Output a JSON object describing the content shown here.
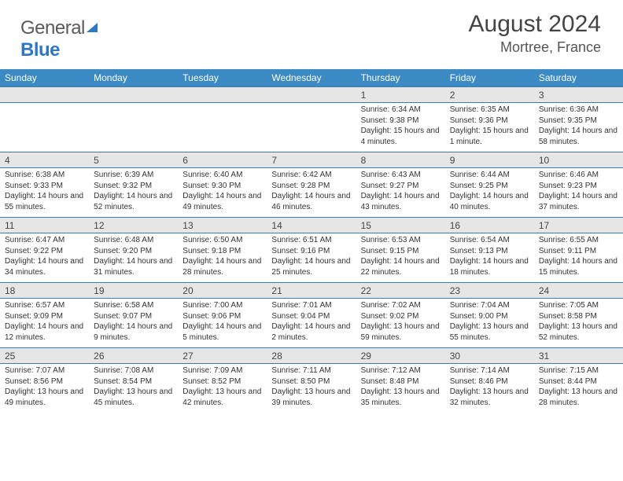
{
  "brand": {
    "name_part1": "General",
    "name_part2": "Blue"
  },
  "title": "August 2024",
  "location": "Mortree, France",
  "colors": {
    "header_bg": "#3b8ac4",
    "row_sep": "#3b7db0",
    "daynum_bg": "#e6e6e6",
    "logo_accent": "#2d78c4"
  },
  "column_headers": [
    "Sunday",
    "Monday",
    "Tuesday",
    "Wednesday",
    "Thursday",
    "Friday",
    "Saturday"
  ],
  "weeks": [
    {
      "nums": [
        "",
        "",
        "",
        "",
        "1",
        "2",
        "3"
      ],
      "infos": [
        null,
        null,
        null,
        null,
        {
          "sunrise": "Sunrise: 6:34 AM",
          "sunset": "Sunset: 9:38 PM",
          "daylight": "Daylight: 15 hours and 4 minutes."
        },
        {
          "sunrise": "Sunrise: 6:35 AM",
          "sunset": "Sunset: 9:36 PM",
          "daylight": "Daylight: 15 hours and 1 minute."
        },
        {
          "sunrise": "Sunrise: 6:36 AM",
          "sunset": "Sunset: 9:35 PM",
          "daylight": "Daylight: 14 hours and 58 minutes."
        }
      ]
    },
    {
      "nums": [
        "4",
        "5",
        "6",
        "7",
        "8",
        "9",
        "10"
      ],
      "infos": [
        {
          "sunrise": "Sunrise: 6:38 AM",
          "sunset": "Sunset: 9:33 PM",
          "daylight": "Daylight: 14 hours and 55 minutes."
        },
        {
          "sunrise": "Sunrise: 6:39 AM",
          "sunset": "Sunset: 9:32 PM",
          "daylight": "Daylight: 14 hours and 52 minutes."
        },
        {
          "sunrise": "Sunrise: 6:40 AM",
          "sunset": "Sunset: 9:30 PM",
          "daylight": "Daylight: 14 hours and 49 minutes."
        },
        {
          "sunrise": "Sunrise: 6:42 AM",
          "sunset": "Sunset: 9:28 PM",
          "daylight": "Daylight: 14 hours and 46 minutes."
        },
        {
          "sunrise": "Sunrise: 6:43 AM",
          "sunset": "Sunset: 9:27 PM",
          "daylight": "Daylight: 14 hours and 43 minutes."
        },
        {
          "sunrise": "Sunrise: 6:44 AM",
          "sunset": "Sunset: 9:25 PM",
          "daylight": "Daylight: 14 hours and 40 minutes."
        },
        {
          "sunrise": "Sunrise: 6:46 AM",
          "sunset": "Sunset: 9:23 PM",
          "daylight": "Daylight: 14 hours and 37 minutes."
        }
      ]
    },
    {
      "nums": [
        "11",
        "12",
        "13",
        "14",
        "15",
        "16",
        "17"
      ],
      "infos": [
        {
          "sunrise": "Sunrise: 6:47 AM",
          "sunset": "Sunset: 9:22 PM",
          "daylight": "Daylight: 14 hours and 34 minutes."
        },
        {
          "sunrise": "Sunrise: 6:48 AM",
          "sunset": "Sunset: 9:20 PM",
          "daylight": "Daylight: 14 hours and 31 minutes."
        },
        {
          "sunrise": "Sunrise: 6:50 AM",
          "sunset": "Sunset: 9:18 PM",
          "daylight": "Daylight: 14 hours and 28 minutes."
        },
        {
          "sunrise": "Sunrise: 6:51 AM",
          "sunset": "Sunset: 9:16 PM",
          "daylight": "Daylight: 14 hours and 25 minutes."
        },
        {
          "sunrise": "Sunrise: 6:53 AM",
          "sunset": "Sunset: 9:15 PM",
          "daylight": "Daylight: 14 hours and 22 minutes."
        },
        {
          "sunrise": "Sunrise: 6:54 AM",
          "sunset": "Sunset: 9:13 PM",
          "daylight": "Daylight: 14 hours and 18 minutes."
        },
        {
          "sunrise": "Sunrise: 6:55 AM",
          "sunset": "Sunset: 9:11 PM",
          "daylight": "Daylight: 14 hours and 15 minutes."
        }
      ]
    },
    {
      "nums": [
        "18",
        "19",
        "20",
        "21",
        "22",
        "23",
        "24"
      ],
      "infos": [
        {
          "sunrise": "Sunrise: 6:57 AM",
          "sunset": "Sunset: 9:09 PM",
          "daylight": "Daylight: 14 hours and 12 minutes."
        },
        {
          "sunrise": "Sunrise: 6:58 AM",
          "sunset": "Sunset: 9:07 PM",
          "daylight": "Daylight: 14 hours and 9 minutes."
        },
        {
          "sunrise": "Sunrise: 7:00 AM",
          "sunset": "Sunset: 9:06 PM",
          "daylight": "Daylight: 14 hours and 5 minutes."
        },
        {
          "sunrise": "Sunrise: 7:01 AM",
          "sunset": "Sunset: 9:04 PM",
          "daylight": "Daylight: 14 hours and 2 minutes."
        },
        {
          "sunrise": "Sunrise: 7:02 AM",
          "sunset": "Sunset: 9:02 PM",
          "daylight": "Daylight: 13 hours and 59 minutes."
        },
        {
          "sunrise": "Sunrise: 7:04 AM",
          "sunset": "Sunset: 9:00 PM",
          "daylight": "Daylight: 13 hours and 55 minutes."
        },
        {
          "sunrise": "Sunrise: 7:05 AM",
          "sunset": "Sunset: 8:58 PM",
          "daylight": "Daylight: 13 hours and 52 minutes."
        }
      ]
    },
    {
      "nums": [
        "25",
        "26",
        "27",
        "28",
        "29",
        "30",
        "31"
      ],
      "infos": [
        {
          "sunrise": "Sunrise: 7:07 AM",
          "sunset": "Sunset: 8:56 PM",
          "daylight": "Daylight: 13 hours and 49 minutes."
        },
        {
          "sunrise": "Sunrise: 7:08 AM",
          "sunset": "Sunset: 8:54 PM",
          "daylight": "Daylight: 13 hours and 45 minutes."
        },
        {
          "sunrise": "Sunrise: 7:09 AM",
          "sunset": "Sunset: 8:52 PM",
          "daylight": "Daylight: 13 hours and 42 minutes."
        },
        {
          "sunrise": "Sunrise: 7:11 AM",
          "sunset": "Sunset: 8:50 PM",
          "daylight": "Daylight: 13 hours and 39 minutes."
        },
        {
          "sunrise": "Sunrise: 7:12 AM",
          "sunset": "Sunset: 8:48 PM",
          "daylight": "Daylight: 13 hours and 35 minutes."
        },
        {
          "sunrise": "Sunrise: 7:14 AM",
          "sunset": "Sunset: 8:46 PM",
          "daylight": "Daylight: 13 hours and 32 minutes."
        },
        {
          "sunrise": "Sunrise: 7:15 AM",
          "sunset": "Sunset: 8:44 PM",
          "daylight": "Daylight: 13 hours and 28 minutes."
        }
      ]
    }
  ]
}
